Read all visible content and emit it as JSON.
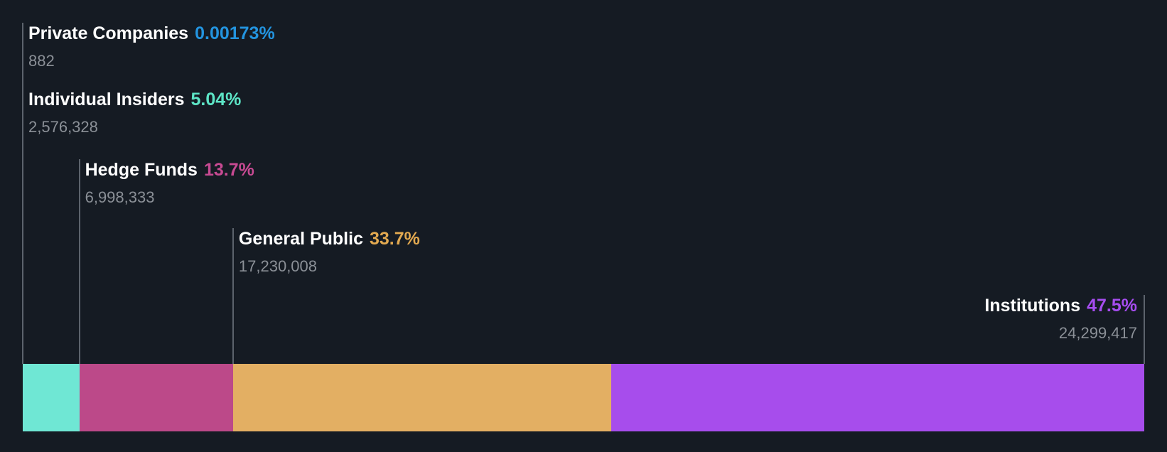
{
  "chart_data": {
    "type": "bar",
    "subtype": "horizontal-stacked-ownership-breakdown",
    "title": "",
    "legend_position": "none",
    "grid": false,
    "categories": [
      "Private Companies",
      "Individual Insiders",
      "Hedge Funds",
      "General Public",
      "Institutions"
    ],
    "values": [
      0.00173,
      5.04,
      13.7,
      33.7,
      47.5
    ],
    "share_counts": [
      882,
      2576328,
      6998333,
      17230008,
      24299417
    ],
    "items": [
      {
        "label": "Private Companies",
        "pct": 0.00173,
        "pct_label": "0.00173%",
        "value_label": "882",
        "text_color": "#2394DF",
        "bar_color": "#2394DF",
        "align": "left"
      },
      {
        "label": "Individual Insiders",
        "pct": 5.04,
        "pct_label": "5.04%",
        "value_label": "2,576,328",
        "text_color": "#5DE5C6",
        "bar_color": "#6FE7D4",
        "align": "left"
      },
      {
        "label": "Hedge Funds",
        "pct": 13.7,
        "pct_label": "13.7%",
        "value_label": "6,998,333",
        "text_color": "#C74A92",
        "bar_color": "#BC4989",
        "align": "left"
      },
      {
        "label": "General Public",
        "pct": 33.7,
        "pct_label": "33.7%",
        "value_label": "17,230,008",
        "text_color": "#E2A950",
        "bar_color": "#E3AF63",
        "align": "left"
      },
      {
        "label": "Institutions",
        "pct": 47.5,
        "pct_label": "47.5%",
        "value_label": "24,299,417",
        "text_color": "#A64DF0",
        "bar_color": "#A74DEC",
        "align": "right"
      }
    ]
  },
  "colors": {
    "background": "#151B23",
    "label_text": "#FFFFFF",
    "value_text": "#8B9097",
    "leader_line": "#5C636C"
  }
}
